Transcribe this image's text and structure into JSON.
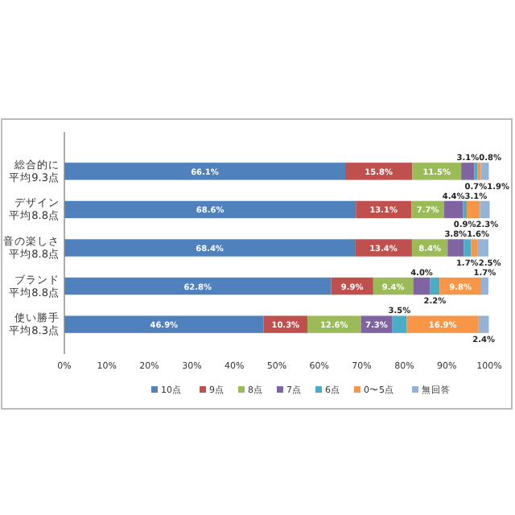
{
  "chart_data": {
    "type": "bar",
    "orientation": "horizontal",
    "stacked": true,
    "legend": "bottom",
    "grid": false,
    "categories": [
      "総合的に平均9.3点",
      "デザイン平均8.8点",
      "音の楽しさ平均8.8点",
      "ブランド平均8.8点",
      "使い勝手平均8.3点"
    ],
    "xlim": [
      0,
      100
    ],
    "xticks": [
      {
        "value": 0,
        "label": "0%"
      },
      {
        "value": 10,
        "label": "10%"
      },
      {
        "value": 20,
        "label": "20%"
      },
      {
        "value": 30,
        "label": "30%"
      },
      {
        "value": 40,
        "label": "40%"
      },
      {
        "value": 50,
        "label": "50%"
      },
      {
        "value": 60,
        "label": "60%"
      },
      {
        "value": 70,
        "label": "70%"
      },
      {
        "value": 80,
        "label": "80%"
      },
      {
        "value": 90,
        "label": "90%"
      },
      {
        "value": 100,
        "label": "100%"
      }
    ],
    "series": [
      {
        "name": "10点",
        "color": "#4f81bd",
        "values": [
          66.1,
          68.6,
          68.4,
          62.8,
          46.9
        ],
        "value_labels": [
          "66.1%",
          "68.6%",
          "68.4%",
          "62.8%",
          "46.9%"
        ]
      },
      {
        "name": "9点",
        "color": "#c0504d",
        "values": [
          15.8,
          13.1,
          13.4,
          9.9,
          10.3
        ],
        "value_labels": [
          "15.8%",
          "13.1%",
          "13.4%",
          "9.9%",
          "10.3%"
        ]
      },
      {
        "name": "8点",
        "color": "#9bbb59",
        "values": [
          11.5,
          7.7,
          8.4,
          9.4,
          12.6
        ],
        "value_labels": [
          "11.5%",
          "7.7%",
          "8.4%",
          "9.4%",
          "12.6%"
        ]
      },
      {
        "name": "7点",
        "color": "#8064a2",
        "values": [
          3.1,
          4.4,
          3.8,
          4.0,
          7.3
        ],
        "value_labels": [
          "3.1%",
          "4.4%",
          "3.8%",
          "4.0%",
          "7.3%"
        ]
      },
      {
        "name": "6点",
        "color": "#4bacc6",
        "values": [
          0.7,
          0.9,
          1.7,
          2.2,
          3.5
        ],
        "value_labels": [
          "0.7%",
          "0.9%",
          "1.7%",
          "2.2%",
          "3.5%"
        ]
      },
      {
        "name": "0〜5点",
        "color": "#f79646",
        "values": [
          0.8,
          3.1,
          1.6,
          9.8,
          16.9
        ],
        "value_labels": [
          "0.8%",
          "3.1%",
          "1.6%",
          "9.8%",
          "16.9%"
        ]
      },
      {
        "name": "無回答",
        "color": "#95b3d7",
        "values": [
          1.9,
          2.3,
          2.5,
          1.7,
          2.4
        ],
        "value_labels": [
          "1.9%",
          "2.3%",
          "2.5%",
          "1.7%",
          "2.4%"
        ]
      }
    ]
  }
}
